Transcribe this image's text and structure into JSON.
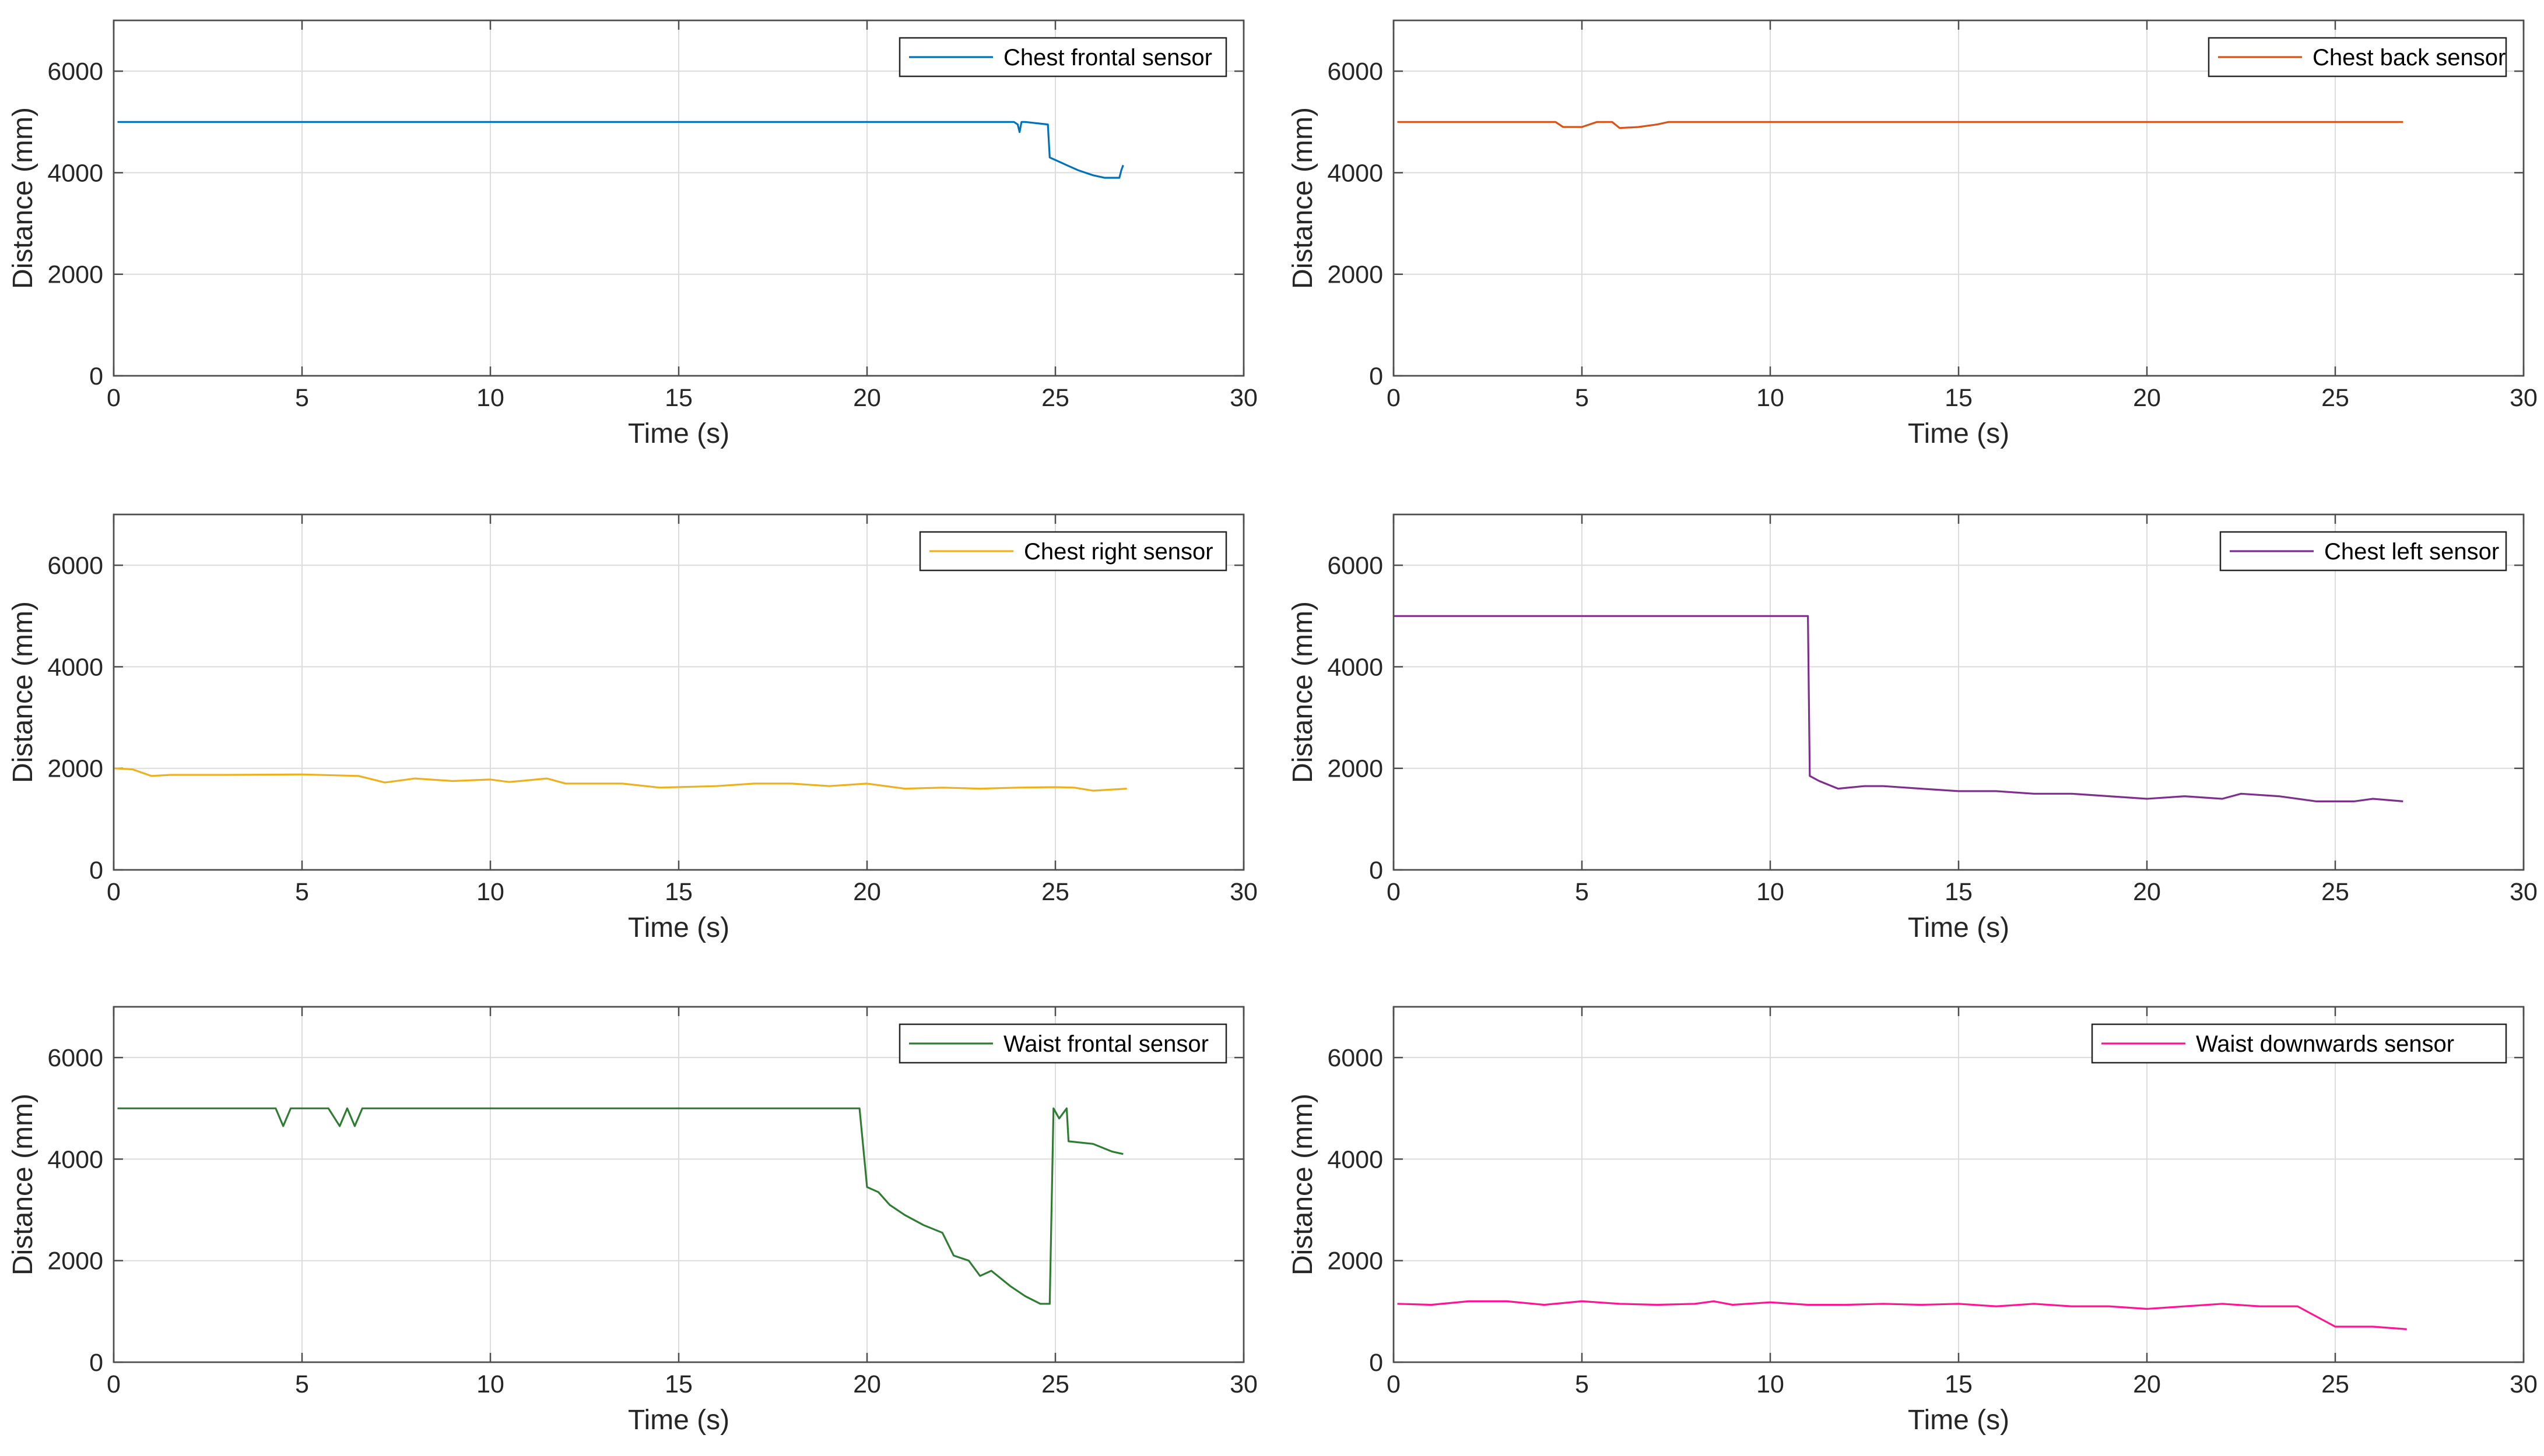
{
  "chart_data": [
    {
      "type": "line",
      "title": "",
      "xlabel": "Time (s)",
      "ylabel": "Distance (mm)",
      "xlim": [
        0,
        30
      ],
      "ylim": [
        0,
        7000
      ],
      "xticks": [
        "0",
        "5",
        "10",
        "15",
        "20",
        "25",
        "30"
      ],
      "yticks": [
        "0",
        "2000",
        "4000",
        "6000"
      ],
      "grid": true,
      "legend_position": "top-right",
      "series": [
        {
          "name": "Chest frontal sensor",
          "color": "#0072bd",
          "x": [
            0.1,
            23.9,
            24.0,
            24.05,
            24.1,
            24.2,
            24.8,
            24.85,
            25.0,
            25.3,
            25.6,
            26.0,
            26.3,
            26.7,
            26.75,
            26.8
          ],
          "y": [
            5000,
            5000,
            4950,
            4800,
            5000,
            5000,
            4950,
            4300,
            4250,
            4150,
            4050,
            3950,
            3900,
            3900,
            4050,
            4150
          ]
        }
      ]
    },
    {
      "type": "line",
      "title": "",
      "xlabel": "Time (s)",
      "ylabel": "Distance (mm)",
      "xlim": [
        0,
        30
      ],
      "ylim": [
        0,
        7000
      ],
      "xticks": [
        "0",
        "5",
        "10",
        "15",
        "20",
        "25",
        "30"
      ],
      "yticks": [
        "0",
        "2000",
        "4000",
        "6000"
      ],
      "grid": true,
      "legend_position": "top-right",
      "series": [
        {
          "name": "Chest back sensor",
          "color": "#d95319",
          "x": [
            0.1,
            4.3,
            4.5,
            5.0,
            5.4,
            5.8,
            6.0,
            6.5,
            7.0,
            7.3,
            8.0,
            26.8
          ],
          "y": [
            5000,
            5000,
            4900,
            4900,
            5000,
            5000,
            4880,
            4900,
            4950,
            5000,
            5000,
            5000
          ]
        }
      ]
    },
    {
      "type": "line",
      "title": "",
      "xlabel": "Time (s)",
      "ylabel": "Distance (mm)",
      "xlim": [
        0,
        30
      ],
      "ylim": [
        0,
        7000
      ],
      "xticks": [
        "0",
        "5",
        "10",
        "15",
        "20",
        "25",
        "30"
      ],
      "yticks": [
        "0",
        "2000",
        "4000",
        "6000"
      ],
      "grid": true,
      "legend_position": "top-right",
      "series": [
        {
          "name": "Chest right sensor",
          "color": "#edb120",
          "x": [
            0.0,
            0.5,
            1.0,
            1.5,
            3.0,
            5.0,
            6.5,
            7.2,
            8.0,
            9.0,
            10.0,
            10.5,
            11.5,
            12.0,
            13.5,
            14.5,
            16.0,
            17.0,
            18.0,
            19.0,
            20.0,
            21.0,
            22.0,
            23.0,
            24.0,
            25.0,
            25.5,
            26.0,
            26.9
          ],
          "y": [
            2000,
            1980,
            1850,
            1870,
            1870,
            1880,
            1850,
            1720,
            1800,
            1750,
            1780,
            1730,
            1800,
            1700,
            1700,
            1620,
            1650,
            1700,
            1700,
            1650,
            1700,
            1600,
            1620,
            1600,
            1620,
            1630,
            1620,
            1560,
            1600
          ]
        }
      ]
    },
    {
      "type": "line",
      "title": "",
      "xlabel": "Time (s)",
      "ylabel": "Distance (mm)",
      "xlim": [
        0,
        30
      ],
      "ylim": [
        0,
        7000
      ],
      "xticks": [
        "0",
        "5",
        "10",
        "15",
        "20",
        "25",
        "30"
      ],
      "yticks": [
        "0",
        "2000",
        "4000",
        "6000"
      ],
      "grid": true,
      "legend_position": "top-right",
      "series": [
        {
          "name": "Chest left sensor",
          "color": "#7e2f8e",
          "x": [
            0.0,
            11.0,
            11.05,
            11.3,
            11.8,
            12.5,
            13.0,
            14.0,
            15.0,
            16.0,
            17.0,
            18.0,
            19.0,
            20.0,
            21.0,
            22.0,
            22.5,
            23.5,
            24.5,
            25.0,
            25.5,
            26.0,
            26.8
          ],
          "y": [
            5000,
            5000,
            1850,
            1750,
            1600,
            1650,
            1650,
            1600,
            1550,
            1550,
            1500,
            1500,
            1450,
            1400,
            1450,
            1400,
            1500,
            1450,
            1350,
            1350,
            1350,
            1400,
            1350
          ]
        }
      ]
    },
    {
      "type": "line",
      "title": "",
      "xlabel": "Time (s)",
      "ylabel": "Distance (mm)",
      "xlim": [
        0,
        30
      ],
      "ylim": [
        0,
        7000
      ],
      "xticks": [
        "0",
        "5",
        "10",
        "15",
        "20",
        "25",
        "30"
      ],
      "yticks": [
        "0",
        "2000",
        "4000",
        "6000"
      ],
      "grid": true,
      "legend_position": "top-right",
      "series": [
        {
          "name": "Waist frontal sensor",
          "color": "#2e7d32",
          "x": [
            0.1,
            4.3,
            4.5,
            4.7,
            5.7,
            6.0,
            6.2,
            6.4,
            6.6,
            19.8,
            20.0,
            20.3,
            20.6,
            21.0,
            21.5,
            22.0,
            22.3,
            22.7,
            23.0,
            23.3,
            23.8,
            24.2,
            24.6,
            24.85,
            24.95,
            25.1,
            25.3,
            25.35,
            26.0,
            26.5,
            26.8
          ],
          "y": [
            5000,
            5000,
            4650,
            5000,
            5000,
            4650,
            5000,
            4650,
            5000,
            5000,
            3450,
            3350,
            3100,
            2900,
            2700,
            2550,
            2100,
            2000,
            1700,
            1800,
            1500,
            1300,
            1150,
            1150,
            5000,
            4800,
            5000,
            4350,
            4300,
            4150,
            4100
          ]
        }
      ]
    },
    {
      "type": "line",
      "title": "",
      "xlabel": "Time (s)",
      "ylabel": "Distance (mm)",
      "xlim": [
        0,
        30
      ],
      "ylim": [
        0,
        7000
      ],
      "xticks": [
        "0",
        "5",
        "10",
        "15",
        "20",
        "25",
        "30"
      ],
      "yticks": [
        "0",
        "2000",
        "4000",
        "6000"
      ],
      "grid": true,
      "legend_position": "top-right",
      "series": [
        {
          "name": "Waist downwards sensor",
          "color": "#ff1493",
          "x": [
            0.1,
            1.0,
            2.0,
            3.0,
            4.0,
            5.0,
            6.0,
            7.0,
            8.0,
            8.5,
            9.0,
            10.0,
            11.0,
            12.0,
            13.0,
            14.0,
            15.0,
            16.0,
            17.0,
            18.0,
            19.0,
            20.0,
            21.0,
            22.0,
            23.0,
            24.0,
            24.5,
            25.0,
            26.0,
            26.9
          ],
          "y": [
            1150,
            1130,
            1200,
            1200,
            1130,
            1200,
            1150,
            1130,
            1150,
            1200,
            1130,
            1180,
            1130,
            1130,
            1150,
            1130,
            1150,
            1100,
            1150,
            1100,
            1100,
            1050,
            1100,
            1150,
            1100,
            1100,
            900,
            700,
            700,
            650
          ]
        }
      ]
    }
  ]
}
